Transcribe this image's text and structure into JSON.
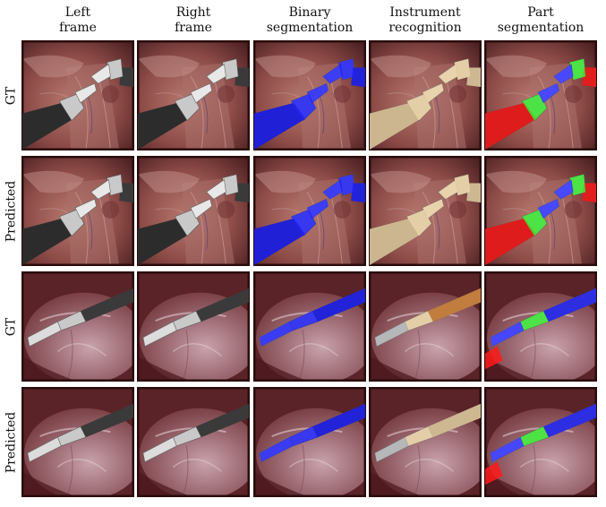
{
  "columns": [
    {
      "label": "Left\nframe",
      "type": "left"
    },
    {
      "label": "Right\nframe",
      "type": "right"
    },
    {
      "label": "Binary\nsegmentation",
      "type": "binary"
    },
    {
      "label": "Instrument\nrecognition",
      "type": "instrument"
    },
    {
      "label": "Part\nsegmentation",
      "type": "part"
    }
  ],
  "rows": [
    {
      "label": "GT",
      "scene": "A",
      "source": "gt"
    },
    {
      "label": "Predicted",
      "scene": "A",
      "source": "pred"
    },
    {
      "label": "GT",
      "scene": "B",
      "source": "gt"
    },
    {
      "label": "Predicted",
      "scene": "B",
      "source": "pred"
    }
  ],
  "colors": {
    "binary": "#1f1ff5",
    "instrument_a": "#e7cfa2",
    "instrument_b": "#d98a3e",
    "instrument_c": "#aeb0b2",
    "part_shaft": "#ff1a1a",
    "part_wrist": "#37e62e",
    "part_clasper": "#2b2bff",
    "tissue_a": "#8e4c48",
    "tissue_b": "#6e3135"
  }
}
